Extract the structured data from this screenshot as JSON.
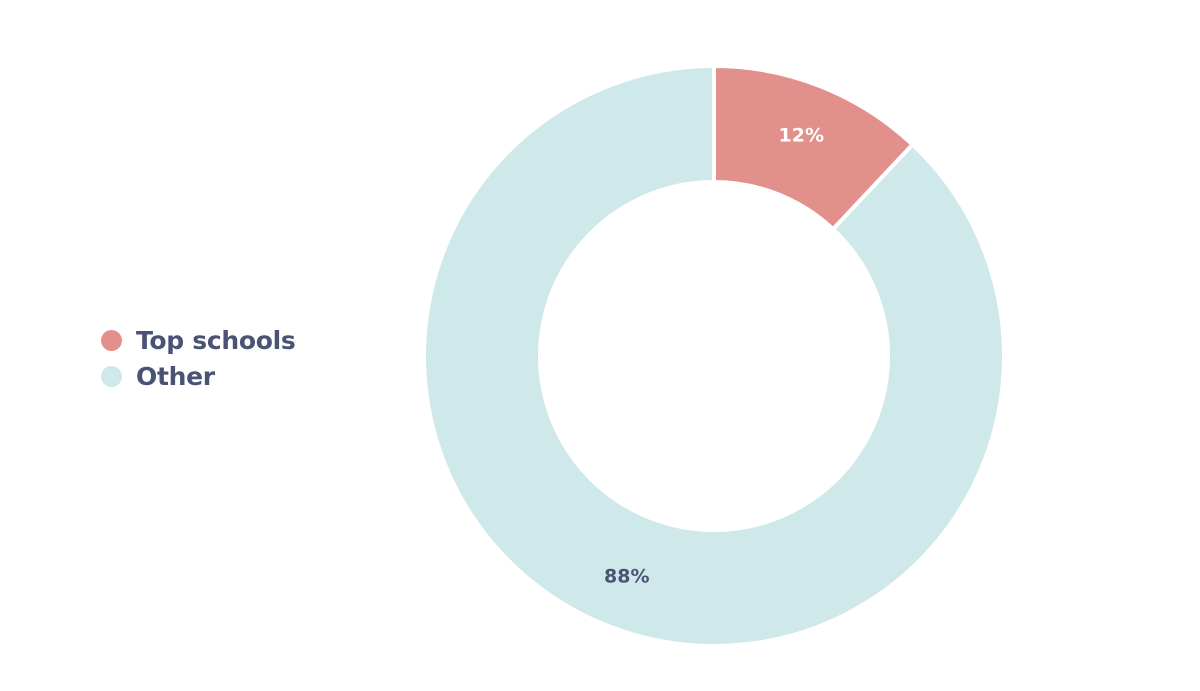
{
  "chart_data": {
    "type": "pie",
    "variant": "donut",
    "categories": [
      "Top schools",
      "Other"
    ],
    "values": [
      12,
      88
    ],
    "value_labels": [
      "12%",
      "88%"
    ],
    "colors": [
      "#e2908c",
      "#cfe8e9"
    ],
    "label_colors": [
      "#ffffff",
      "#4a5374"
    ],
    "title": "",
    "legend": {
      "placement": "left",
      "entries": [
        "Top schools",
        "Other"
      ]
    }
  },
  "colors": {
    "background": "#ffffff",
    "legend_text": "#4a5374",
    "slice_border": "#ffffff"
  }
}
